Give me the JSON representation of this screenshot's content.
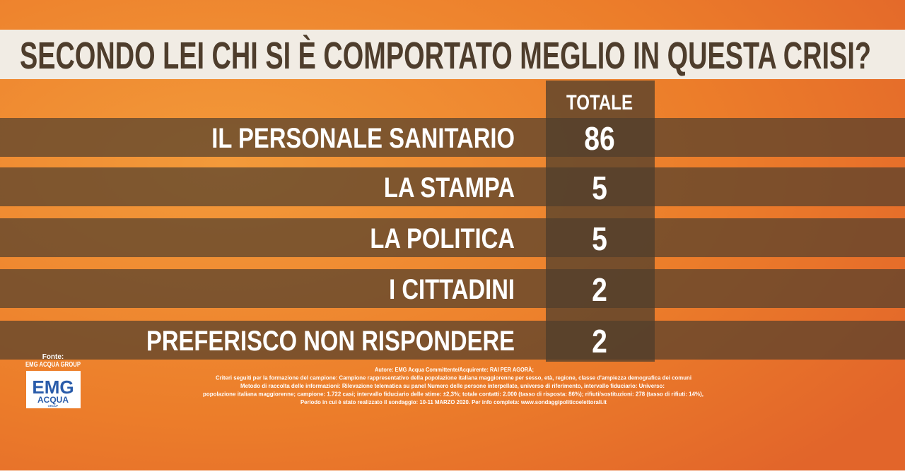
{
  "title": "SECONDO LEI CHI SI È COMPORTATO MEGLIO IN QUESTA CRISI?",
  "table": {
    "header": "TOTALE",
    "rows": [
      [
        "IL PERSONALE SANITARIO",
        86
      ],
      [
        "LA STAMPA",
        5
      ],
      [
        "LA POLITICA",
        5
      ],
      [
        "I CITTADINI",
        2
      ],
      [
        "PREFERISCO NON RISPONDERE",
        2
      ]
    ]
  },
  "source": {
    "label": "Fonte:",
    "name": "EMG ACQUA GROUP",
    "logo": [
      "EMG",
      "ACQUA",
      "GROUP"
    ]
  },
  "footnote": [
    "Autore: EMG Acqua Committente/Acquirente: RAI PER AGORÀ;",
    "Criteri seguiti per la formazione del campione: Campione rappresentativo della popolazione italiana maggiorenne per sesso, età, regione, classe d'ampiezza demografica dei comuni",
    "Metodo di raccolta delle informazioni: Rilevazione telematica su panel Numero delle persone interpellate, universo di riferimento, intervallo fiduciario: Universo:",
    "popolazione italiana maggiorenne; campione: 1.722 casi; intervallo fiduciario delle stime: ±2,3%; totale contatti: 2.000 (tasso di risposta: 86%); rifiuti/sostituzioni: 278 (tasso di rifiuti: 14%),",
    "Periodo in cui è stato realizzato il sondaggio: 10-11 MARZO 2020. Per info completa: www.sondaggipoliticoelettorali.it"
  ]
}
